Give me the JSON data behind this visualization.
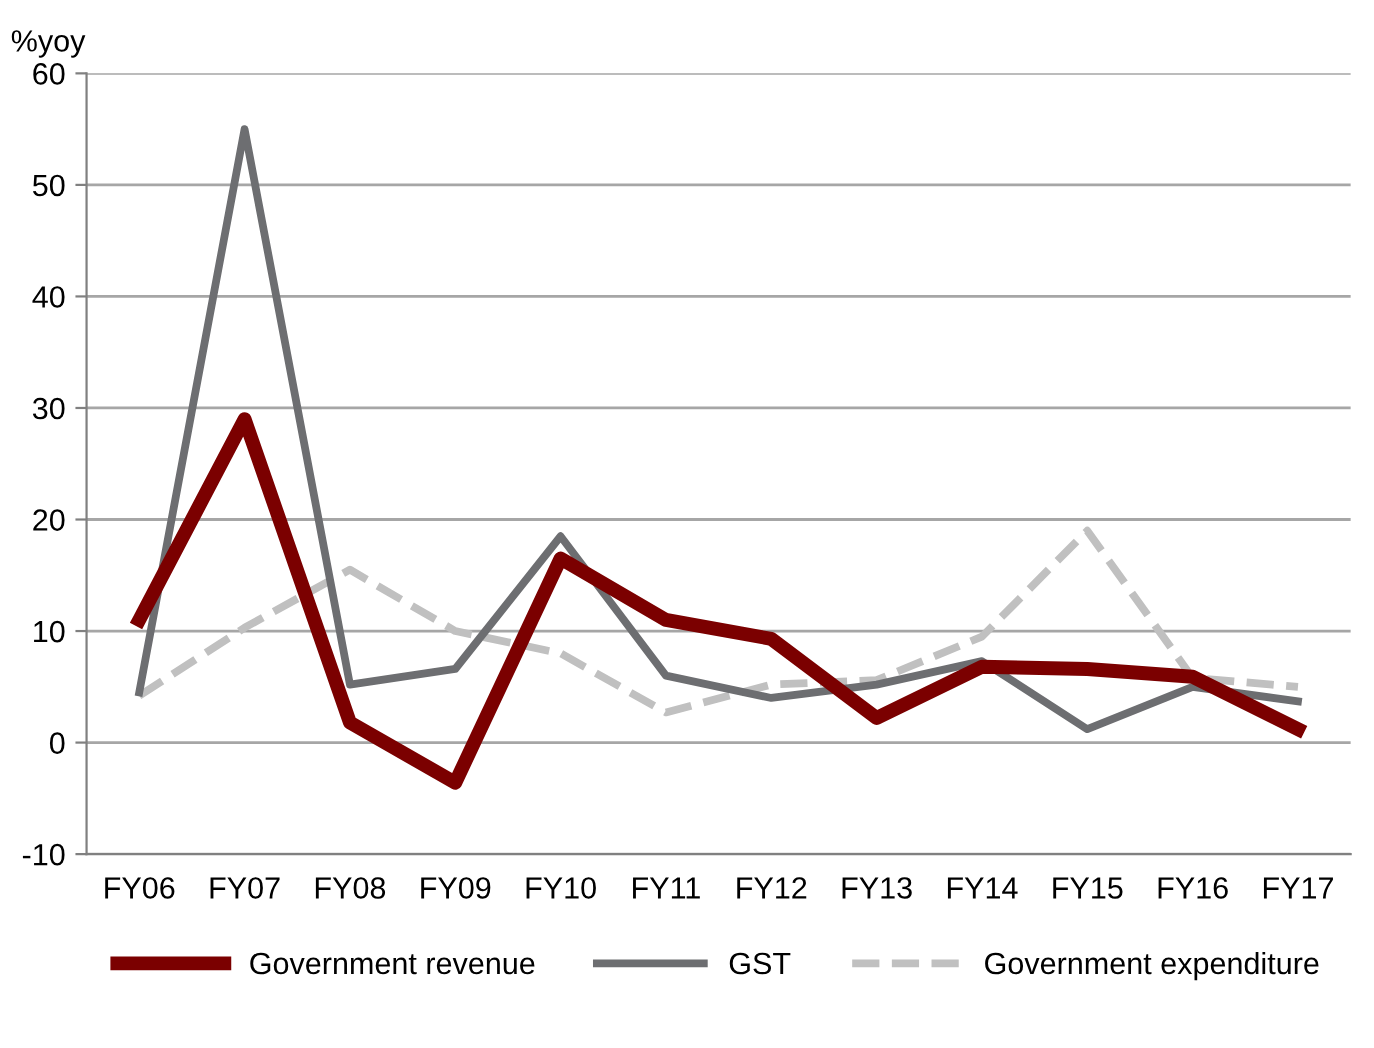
{
  "chart_data": {
    "type": "line",
    "ylabel": "%yoy",
    "categories": [
      "FY06",
      "FY07",
      "FY08",
      "FY09",
      "FY10",
      "FY11",
      "FY12",
      "FY13",
      "FY14",
      "FY15",
      "FY16",
      "FY17"
    ],
    "series": [
      {
        "name": "Government revenue",
        "color": "#7b0000",
        "values": [
          11,
          29,
          1.8,
          -3.6,
          16.5,
          11,
          9.3,
          2.2,
          6.8,
          6.6,
          5.9,
          1.2
        ]
      },
      {
        "name": "GST",
        "color": "#6d6e71",
        "values": [
          4.5,
          55,
          5.2,
          6.6,
          18.5,
          6,
          4,
          5.2,
          7.3,
          1.2,
          5,
          3.7
        ]
      },
      {
        "name": "Government expenditure",
        "color": "#c0c0c0",
        "line_style": "dashed",
        "values": [
          4.2,
          10.3,
          15.5,
          10,
          8,
          2.7,
          5.2,
          5.6,
          9.5,
          19,
          5.8,
          5
        ]
      }
    ],
    "ylim": [
      -10,
      60
    ],
    "yticks": [
      -10,
      0,
      10,
      20,
      30,
      40,
      50,
      60
    ],
    "grid": "y",
    "legend": "bottom"
  }
}
